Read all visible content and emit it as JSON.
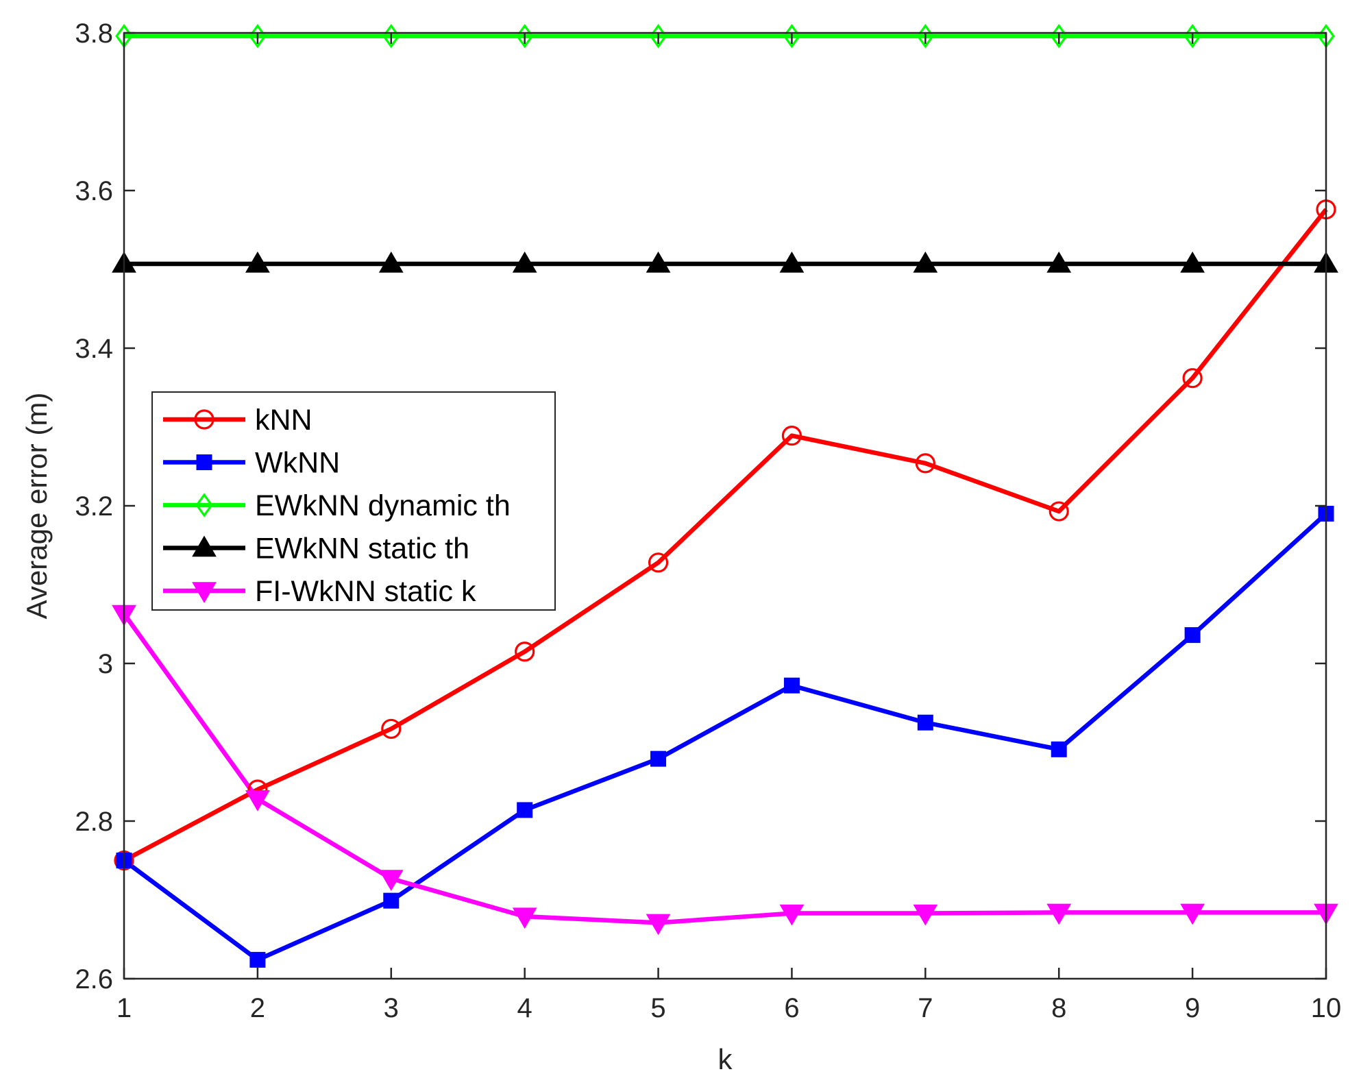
{
  "chart_data": {
    "type": "line",
    "title": "",
    "xlabel": "k",
    "ylabel": "Average error (m)",
    "x": [
      1,
      2,
      3,
      4,
      5,
      6,
      7,
      8,
      9,
      10
    ],
    "xlim": [
      1,
      10
    ],
    "ylim": [
      2.6,
      3.8
    ],
    "xticks": [
      "1",
      "2",
      "3",
      "4",
      "5",
      "6",
      "7",
      "8",
      "9",
      "10"
    ],
    "yticks": [
      "2.6",
      "2.8",
      "3",
      "3.2",
      "3.4",
      "3.6",
      "3.8"
    ],
    "grid": false,
    "legend_position": "center-left",
    "series": [
      {
        "name": "kNN",
        "color": "#ff0000",
        "marker": "circle",
        "values": [
          2.75,
          2.84,
          2.917,
          3.015,
          3.128,
          3.289,
          3.254,
          3.193,
          3.362,
          3.576
        ]
      },
      {
        "name": "WkNN",
        "color": "#0000ff",
        "marker": "square",
        "values": [
          2.75,
          2.624,
          2.699,
          2.814,
          2.879,
          2.972,
          2.925,
          2.891,
          3.036,
          3.19
        ]
      },
      {
        "name": "EWkNN dynamic th",
        "color": "#00ff00",
        "marker": "diamond",
        "values": [
          3.796,
          3.796,
          3.796,
          3.796,
          3.796,
          3.796,
          3.796,
          3.796,
          3.796,
          3.796
        ]
      },
      {
        "name": "EWkNN static th",
        "color": "#000000",
        "marker": "triangle-up",
        "values": [
          3.507,
          3.507,
          3.507,
          3.507,
          3.507,
          3.507,
          3.507,
          3.507,
          3.507,
          3.507
        ]
      },
      {
        "name": "FI-WkNN static k",
        "color": "#ff00ff",
        "marker": "triangle-down",
        "values": [
          3.063,
          2.828,
          2.727,
          2.679,
          2.671,
          2.683,
          2.683,
          2.684,
          2.684,
          2.684
        ]
      }
    ]
  }
}
